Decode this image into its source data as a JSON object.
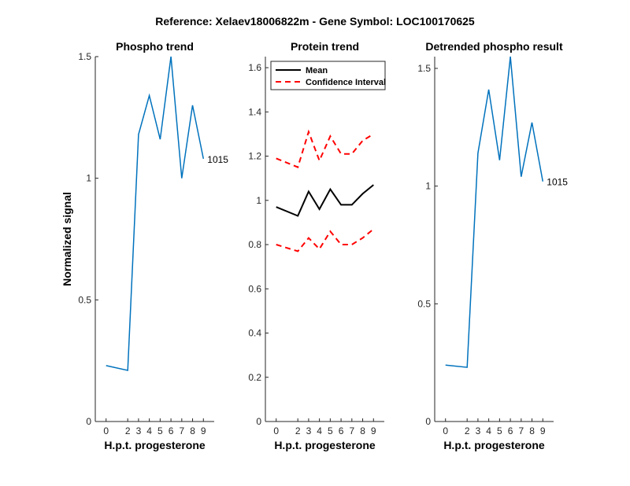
{
  "figure": {
    "title": "Reference:  Xelaev18006822m - Gene Symbol:  LOC100170625"
  },
  "colors": {
    "phospho": "#0072BD",
    "mean": "#000000",
    "ci": "#FF0000",
    "axis": "#262626"
  },
  "chart_data": [
    {
      "type": "line",
      "title": "Phospho trend",
      "xlabel": "H.p.t. progesterone",
      "ylabel": "Normalized signal",
      "x": [
        0,
        2,
        3,
        4,
        5,
        6,
        7,
        8,
        9
      ],
      "xticks": [
        "0",
        "2",
        "3",
        "4",
        "5",
        "6",
        "7",
        "8",
        "9"
      ],
      "ylim": [
        0,
        1.5
      ],
      "yticks": [
        "0",
        "0.5",
        "1",
        "1.5"
      ],
      "series": [
        {
          "values": [
            0.23,
            0.21,
            1.18,
            1.34,
            1.16,
            1.5,
            1.0,
            1.3,
            1.08
          ]
        }
      ],
      "end_label": "1015",
      "grid": false
    },
    {
      "type": "line",
      "title": "Protein trend",
      "xlabel": "H.p.t. progesterone",
      "ylabel": "",
      "x": [
        0,
        2,
        3,
        4,
        5,
        6,
        7,
        8,
        9
      ],
      "xticks": [
        "0",
        "2",
        "3",
        "4",
        "5",
        "6",
        "7",
        "8",
        "9"
      ],
      "ylim": [
        0,
        1.65
      ],
      "yticks": [
        "0",
        "0.2",
        "0.4",
        "0.6",
        "0.8",
        "1",
        "1.2",
        "1.4",
        "1.6"
      ],
      "series": [
        {
          "name": "Mean",
          "style": "solid",
          "values": [
            0.97,
            0.93,
            1.04,
            0.96,
            1.05,
            0.98,
            0.98,
            1.03,
            1.07
          ]
        },
        {
          "name": "Confidence Interval",
          "style": "dashed",
          "values": [
            1.19,
            1.15,
            1.31,
            1.18,
            1.29,
            1.21,
            1.21,
            1.27,
            1.3
          ]
        },
        {
          "name": "",
          "style": "dashed",
          "values": [
            0.8,
            0.77,
            0.83,
            0.78,
            0.86,
            0.8,
            0.8,
            0.83,
            0.87
          ]
        }
      ],
      "legend": [
        "Mean",
        "Confidence Interval"
      ],
      "legend_position": "top-left",
      "grid": false
    },
    {
      "type": "line",
      "title": "Detrended phospho result",
      "xlabel": "H.p.t. progesterone",
      "ylabel": "",
      "x": [
        0,
        2,
        3,
        4,
        5,
        6,
        7,
        8,
        9
      ],
      "xticks": [
        "0",
        "2",
        "3",
        "4",
        "5",
        "6",
        "7",
        "8",
        "9"
      ],
      "ylim": [
        0,
        1.55
      ],
      "yticks": [
        "0",
        "0.5",
        "1",
        "1.5"
      ],
      "series": [
        {
          "values": [
            0.24,
            0.23,
            1.14,
            1.41,
            1.11,
            1.55,
            1.04,
            1.27,
            1.02
          ]
        }
      ],
      "end_label": "1015",
      "grid": false
    }
  ]
}
